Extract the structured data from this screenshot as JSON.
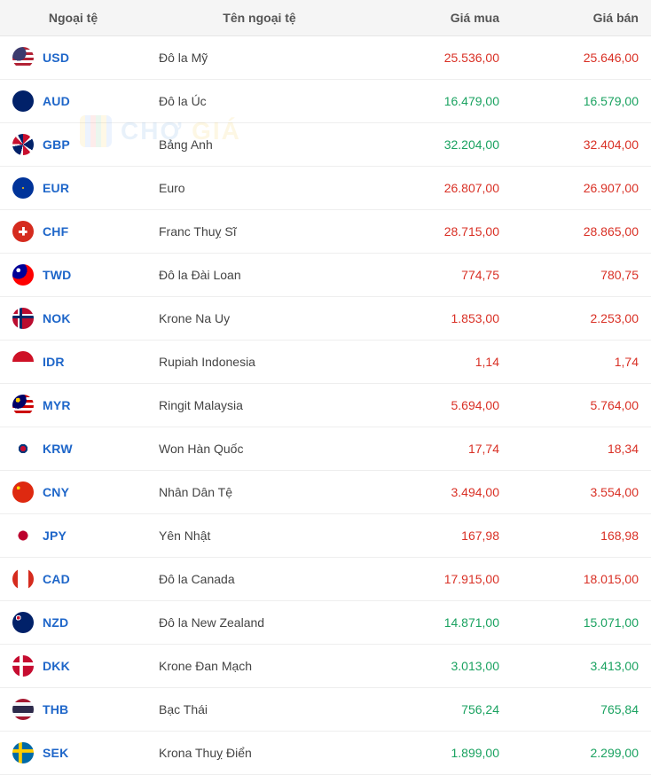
{
  "table": {
    "headers": {
      "code": "Ngoại tệ",
      "name": "Tên ngoại tệ",
      "buy": "Giá mua",
      "sell": "Giá bán"
    },
    "rows": [
      {
        "code": "USD",
        "name": "Đô la Mỹ",
        "buy": "25.536,00",
        "buy_dir": "up",
        "sell": "25.646,00",
        "sell_dir": "up",
        "flag_css": "radial-gradient(circle at 30% 30%, #3c3b6e 0 35%, transparent 35%), repeating-linear-gradient(180deg,#b22234 0 3px,#ffffff 3px 6px)"
      },
      {
        "code": "AUD",
        "name": "Đô la Úc",
        "buy": "16.479,00",
        "buy_dir": "down",
        "sell": "16.579,00",
        "sell_dir": "down",
        "flag_css": "radial-gradient(circle at 30% 30%, #012169 0 100%)"
      },
      {
        "code": "GBP",
        "name": "Bảng Anh",
        "buy": "32.204,00",
        "buy_dir": "down",
        "sell": "32.404,00",
        "sell_dir": "up",
        "flag_css": "conic-gradient(from 0deg,#c8102e 0 12%,#fff 12% 16%,#012169 16% 34%,#fff 34% 38%,#c8102e 38% 50%,#fff 50% 54%,#012169 54% 72%,#fff 72% 76%,#c8102e 76% 88%,#fff 88% 92%,#012169 92% 100%)"
      },
      {
        "code": "EUR",
        "name": "Euro",
        "buy": "26.807,00",
        "buy_dir": "up",
        "sell": "26.907,00",
        "sell_dir": "up",
        "flag_css": "radial-gradient(circle,#ffcc00 0 6%,transparent 6%), #003399"
      },
      {
        "code": "CHF",
        "name": "Franc Thuỵ Sĩ",
        "buy": "28.715,00",
        "buy_dir": "up",
        "sell": "28.865,00",
        "sell_dir": "up",
        "flag_css": "linear-gradient(#fff,#fff) center/40% 12% no-repeat, linear-gradient(#fff,#fff) center/12% 40% no-repeat, #d52b1e"
      },
      {
        "code": "TWD",
        "name": "Đô la Đài Loan",
        "buy": "774,75",
        "buy_dir": "up",
        "sell": "780,75",
        "sell_dir": "up",
        "flag_css": "radial-gradient(circle at 28% 28%,#fff 0 10%,#000097 10% 40%,transparent 40%), #fe0000"
      },
      {
        "code": "NOK",
        "name": "Krone Na Uy",
        "buy": "1.853,00",
        "buy_dir": "up",
        "sell": "2.253,00",
        "sell_dir": "up",
        "flag_css": "linear-gradient(#002868,#002868) 38% 0/14% 100% no-repeat,linear-gradient(#002868,#002868) 0 43%/100% 14% no-repeat,linear-gradient(#fff,#fff) 34% 0/22% 100% no-repeat,linear-gradient(#fff,#fff) 0 39%/100% 22% no-repeat,#ba0c2f"
      },
      {
        "code": "IDR",
        "name": "Rupiah Indonesia",
        "buy": "1,14",
        "buy_dir": "up",
        "sell": "1,74",
        "sell_dir": "up",
        "flag_css": "linear-gradient(180deg,#ce1126 0 50%,#ffffff 50% 100%)"
      },
      {
        "code": "MYR",
        "name": "Ringit Malaysia",
        "buy": "5.694,00",
        "buy_dir": "up",
        "sell": "5.764,00",
        "sell_dir": "up",
        "flag_css": "radial-gradient(circle at 26% 26%,#ffcc00 0 10%,#010066 10% 38%,transparent 38%),repeating-linear-gradient(180deg,#cc0001 0 3px,#fff 3px 6px)"
      },
      {
        "code": "KRW",
        "name": "Won Hàn Quốc",
        "buy": "17,74",
        "buy_dir": "up",
        "sell": "18,34",
        "sell_dir": "up",
        "flag_css": "radial-gradient(circle,#c60c30 0 18%,#003478 18% 30%,transparent 30%), #ffffff"
      },
      {
        "code": "CNY",
        "name": "Nhân Dân Tệ",
        "buy": "3.494,00",
        "buy_dir": "up",
        "sell": "3.554,00",
        "sell_dir": "up",
        "flag_css": "radial-gradient(circle at 28% 30%,#ffde00 0 8%,transparent 8%),#de2910"
      },
      {
        "code": "JPY",
        "name": "Yên Nhật",
        "buy": "167,98",
        "buy_dir": "up",
        "sell": "168,98",
        "sell_dir": "up",
        "flag_css": "radial-gradient(circle,#bc002d 0 32%,transparent 32%), #ffffff"
      },
      {
        "code": "CAD",
        "name": "Đô la Canada",
        "buy": "17.915,00",
        "buy_dir": "up",
        "sell": "18.015,00",
        "sell_dir": "up",
        "flag_css": "linear-gradient(90deg,#d52b1e 0 25%,#fff 25% 75%,#d52b1e 75% 100%)"
      },
      {
        "code": "NZD",
        "name": "Đô la New Zealand",
        "buy": "14.871,00",
        "buy_dir": "down",
        "sell": "15.071,00",
        "sell_dir": "down",
        "flag_css": "radial-gradient(circle at 28% 28%,#c8102e 0 8%,#fff 8% 12%,#012169 12% 40%,transparent 40%),#012169"
      },
      {
        "code": "DKK",
        "name": "Krone Đan Mạch",
        "buy": "3.013,00",
        "buy_dir": "down",
        "sell": "3.413,00",
        "sell_dir": "down",
        "flag_css": "linear-gradient(#fff,#fff) 38% 0/16% 100% no-repeat,linear-gradient(#fff,#fff) 0 42%/100% 16% no-repeat,#c60c30"
      },
      {
        "code": "THB",
        "name": "Bạc Thái",
        "buy": "756,24",
        "buy_dir": "down",
        "sell": "765,84",
        "sell_dir": "down",
        "flag_css": "linear-gradient(180deg,#a51931 0 16%,#f4f5f8 16% 33%,#2d2a4a 33% 67%,#f4f5f8 67% 84%,#a51931 84% 100%)"
      },
      {
        "code": "SEK",
        "name": "Krona Thuỵ Điển",
        "buy": "1.899,00",
        "buy_dir": "down",
        "sell": "2.299,00",
        "sell_dir": "down",
        "flag_css": "linear-gradient(#fecc00,#fecc00) 36% 0/16% 100% no-repeat,linear-gradient(#fecc00,#fecc00) 0 42%/100% 16% no-repeat,#006aa7"
      }
    ]
  },
  "watermark": {
    "text_a": "CHỢ ",
    "text_b": "GIÁ"
  },
  "colors": {
    "header_bg": "#f5f5f5",
    "row_border": "#eeeeee",
    "link": "#1e66c9",
    "up": "#d93025",
    "down": "#1aa260"
  }
}
